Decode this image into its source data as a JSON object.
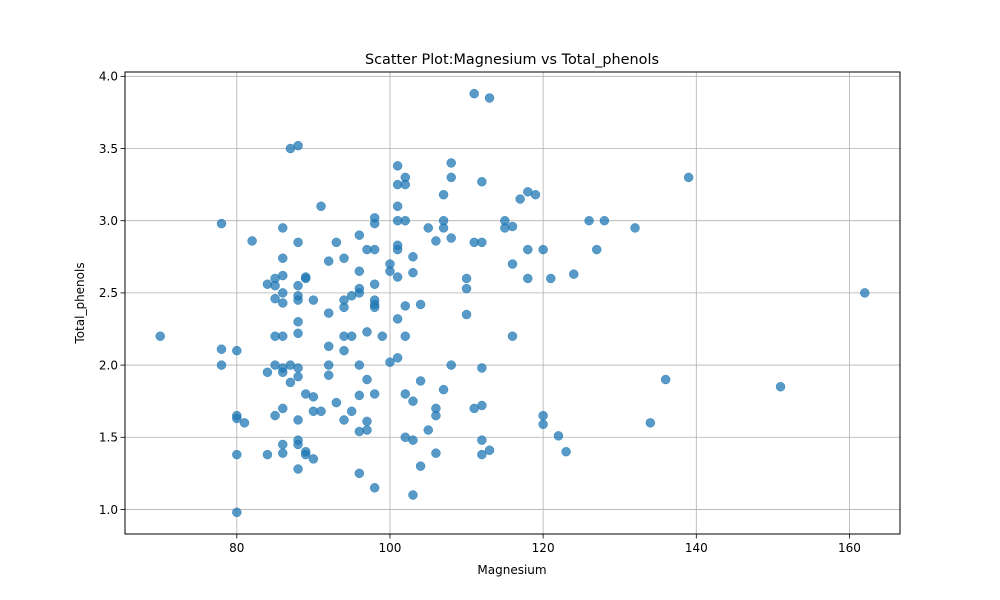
{
  "chart_data": {
    "type": "scatter",
    "title": "Scatter Plot:Magnesium vs Total_phenols",
    "xlabel": "Magnesium",
    "ylabel": "Total_phenols",
    "xlim": [
      65.4,
      166.6
    ],
    "ylim": [
      0.83,
      4.03
    ],
    "xticks": [
      80,
      100,
      120,
      140,
      160
    ],
    "yticks": [
      1.0,
      1.5,
      2.0,
      2.5,
      3.0,
      3.5,
      4.0
    ],
    "xtick_labels": [
      "80",
      "100",
      "120",
      "140",
      "160"
    ],
    "ytick_labels": [
      "1.0",
      "1.5",
      "2.0",
      "2.5",
      "3.0",
      "3.5",
      "4.0"
    ],
    "grid": true,
    "marker_color": "#1f77b4",
    "marker_alpha": 0.75,
    "points": [
      [
        70,
        2.2
      ],
      [
        78,
        2.98
      ],
      [
        78,
        2.11
      ],
      [
        78,
        2.0
      ],
      [
        80,
        2.1
      ],
      [
        80,
        1.65
      ],
      [
        80,
        1.63
      ],
      [
        80,
        1.38
      ],
      [
        80,
        0.98
      ],
      [
        81,
        1.6
      ],
      [
        82,
        2.86
      ],
      [
        84,
        2.56
      ],
      [
        84,
        1.95
      ],
      [
        84,
        1.38
      ],
      [
        85,
        2.6
      ],
      [
        85,
        2.55
      ],
      [
        85,
        2.46
      ],
      [
        85,
        2.2
      ],
      [
        85,
        2.0
      ],
      [
        85,
        1.65
      ],
      [
        86,
        2.95
      ],
      [
        86,
        2.74
      ],
      [
        86,
        2.62
      ],
      [
        86,
        2.5
      ],
      [
        86,
        2.43
      ],
      [
        86,
        2.2
      ],
      [
        86,
        1.98
      ],
      [
        86,
        1.95
      ],
      [
        86,
        1.7
      ],
      [
        86,
        1.45
      ],
      [
        86,
        1.39
      ],
      [
        87,
        3.5
      ],
      [
        87,
        2.0
      ],
      [
        87,
        1.88
      ],
      [
        88,
        3.52
      ],
      [
        88,
        2.85
      ],
      [
        88,
        2.55
      ],
      [
        88,
        2.48
      ],
      [
        88,
        2.45
      ],
      [
        88,
        2.3
      ],
      [
        88,
        2.22
      ],
      [
        88,
        1.98
      ],
      [
        88,
        1.92
      ],
      [
        88,
        1.62
      ],
      [
        88,
        1.48
      ],
      [
        88,
        1.45
      ],
      [
        88,
        1.28
      ],
      [
        89,
        2.6
      ],
      [
        89,
        2.61
      ],
      [
        89,
        1.8
      ],
      [
        89,
        1.4
      ],
      [
        89,
        1.38
      ],
      [
        90,
        2.45
      ],
      [
        90,
        1.78
      ],
      [
        90,
        1.68
      ],
      [
        90,
        1.35
      ],
      [
        91,
        3.1
      ],
      [
        91,
        1.68
      ],
      [
        92,
        2.72
      ],
      [
        92,
        2.36
      ],
      [
        92,
        2.13
      ],
      [
        92,
        2.0
      ],
      [
        92,
        1.93
      ],
      [
        93,
        2.85
      ],
      [
        93,
        1.74
      ],
      [
        94,
        2.74
      ],
      [
        94,
        2.45
      ],
      [
        94,
        2.4
      ],
      [
        94,
        2.2
      ],
      [
        94,
        2.1
      ],
      [
        94,
        1.62
      ],
      [
        95,
        2.48
      ],
      [
        95,
        2.2
      ],
      [
        95,
        1.68
      ],
      [
        96,
        2.9
      ],
      [
        96,
        2.65
      ],
      [
        96,
        2.53
      ],
      [
        96,
        2.5
      ],
      [
        96,
        2.0
      ],
      [
        96,
        1.79
      ],
      [
        96,
        1.54
      ],
      [
        96,
        1.25
      ],
      [
        97,
        2.8
      ],
      [
        97,
        2.23
      ],
      [
        97,
        1.9
      ],
      [
        97,
        1.61
      ],
      [
        97,
        1.55
      ],
      [
        98,
        3.02
      ],
      [
        98,
        2.98
      ],
      [
        98,
        2.8
      ],
      [
        98,
        2.56
      ],
      [
        98,
        2.45
      ],
      [
        98,
        2.42
      ],
      [
        98,
        2.4
      ],
      [
        98,
        1.8
      ],
      [
        98,
        1.15
      ],
      [
        99,
        2.2
      ],
      [
        100,
        2.7
      ],
      [
        100,
        2.65
      ],
      [
        100,
        2.02
      ],
      [
        101,
        3.38
      ],
      [
        101,
        3.25
      ],
      [
        101,
        3.1
      ],
      [
        101,
        3.0
      ],
      [
        101,
        2.83
      ],
      [
        101,
        2.8
      ],
      [
        101,
        2.61
      ],
      [
        101,
        2.32
      ],
      [
        101,
        2.05
      ],
      [
        102,
        3.3
      ],
      [
        102,
        3.25
      ],
      [
        102,
        3.0
      ],
      [
        102,
        2.41
      ],
      [
        102,
        2.2
      ],
      [
        102,
        1.8
      ],
      [
        102,
        1.5
      ],
      [
        103,
        2.75
      ],
      [
        103,
        2.64
      ],
      [
        103,
        1.75
      ],
      [
        103,
        1.48
      ],
      [
        103,
        1.1
      ],
      [
        104,
        2.42
      ],
      [
        104,
        1.89
      ],
      [
        104,
        1.3
      ],
      [
        105,
        2.95
      ],
      [
        105,
        1.55
      ],
      [
        106,
        2.86
      ],
      [
        106,
        1.7
      ],
      [
        106,
        1.65
      ],
      [
        106,
        1.39
      ],
      [
        107,
        3.18
      ],
      [
        107,
        3.0
      ],
      [
        107,
        2.95
      ],
      [
        107,
        1.83
      ],
      [
        108,
        3.4
      ],
      [
        108,
        3.3
      ],
      [
        108,
        2.88
      ],
      [
        108,
        2.0
      ],
      [
        110,
        2.6
      ],
      [
        110,
        2.53
      ],
      [
        110,
        2.35
      ],
      [
        111,
        3.88
      ],
      [
        111,
        2.85
      ],
      [
        111,
        1.7
      ],
      [
        112,
        3.27
      ],
      [
        112,
        2.85
      ],
      [
        112,
        1.98
      ],
      [
        112,
        1.72
      ],
      [
        112,
        1.48
      ],
      [
        112,
        1.38
      ],
      [
        113,
        3.85
      ],
      [
        113,
        1.41
      ],
      [
        115,
        3.0
      ],
      [
        115,
        2.95
      ],
      [
        116,
        2.96
      ],
      [
        116,
        2.7
      ],
      [
        116,
        2.2
      ],
      [
        117,
        3.15
      ],
      [
        118,
        3.2
      ],
      [
        118,
        2.8
      ],
      [
        118,
        2.6
      ],
      [
        119,
        3.18
      ],
      [
        120,
        2.8
      ],
      [
        120,
        1.65
      ],
      [
        120,
        1.59
      ],
      [
        121,
        2.6
      ],
      [
        122,
        1.51
      ],
      [
        123,
        1.4
      ],
      [
        124,
        2.63
      ],
      [
        126,
        3.0
      ],
      [
        127,
        2.8
      ],
      [
        128,
        3.0
      ],
      [
        132,
        2.95
      ],
      [
        134,
        1.6
      ],
      [
        136,
        1.9
      ],
      [
        139,
        3.3
      ],
      [
        151,
        1.85
      ],
      [
        162,
        2.5
      ]
    ]
  }
}
